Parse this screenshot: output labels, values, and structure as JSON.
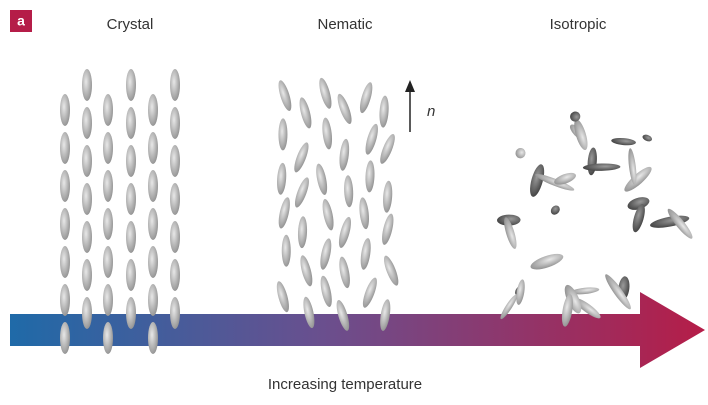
{
  "panel_label": "a",
  "phases": [
    "Crystal",
    "Nematic",
    "Isotropic"
  ],
  "director_label": "n",
  "axis_label": "Increasing temperature"
}
